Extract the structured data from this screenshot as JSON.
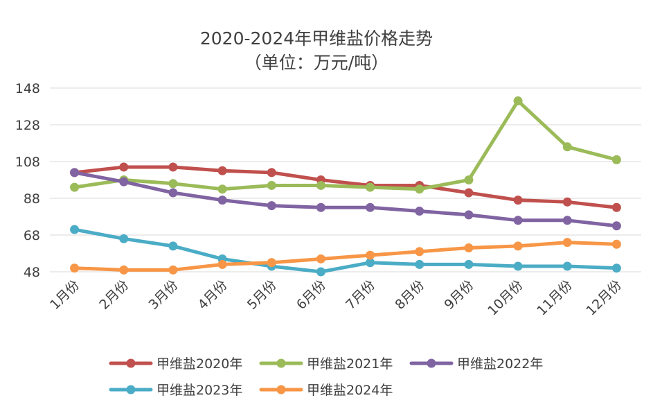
{
  "chart_data": {
    "type": "line",
    "title": "2020-2024年甲维盐价格走势",
    "subtitle": "（单位：万元/吨）",
    "categories": [
      "1月份",
      "2月份",
      "3月份",
      "4月份",
      "5月份",
      "6月份",
      "7月份",
      "8月份",
      "9月份",
      "10月份",
      "11月份",
      "12月份"
    ],
    "yticks": [
      48,
      68,
      88,
      108,
      128,
      148
    ],
    "ylim": [
      48,
      148
    ],
    "grid": true,
    "legend_position": "bottom",
    "series": [
      {
        "name": "甲维盐2020年",
        "color": "#c0504d",
        "values": [
          102,
          105,
          105,
          103,
          102,
          98,
          95,
          95,
          91,
          87,
          86,
          83
        ]
      },
      {
        "name": "甲维盐2021年",
        "color": "#9bbb59",
        "values": [
          94,
          98,
          96,
          93,
          95,
          95,
          94,
          93,
          98,
          141,
          116,
          109
        ]
      },
      {
        "name": "甲维盐2022年",
        "color": "#8064a2",
        "values": [
          102,
          97,
          91,
          87,
          84,
          83,
          83,
          81,
          79,
          76,
          76,
          73
        ]
      },
      {
        "name": "甲维盐2023年",
        "color": "#4bacc6",
        "values": [
          71,
          66,
          62,
          55,
          51,
          48,
          53,
          52,
          52,
          51,
          51,
          50
        ]
      },
      {
        "name": "甲维盐2024年",
        "color": "#f79646",
        "values": [
          50,
          49,
          49,
          52,
          53,
          55,
          57,
          59,
          61,
          62,
          64,
          63
        ]
      }
    ]
  }
}
